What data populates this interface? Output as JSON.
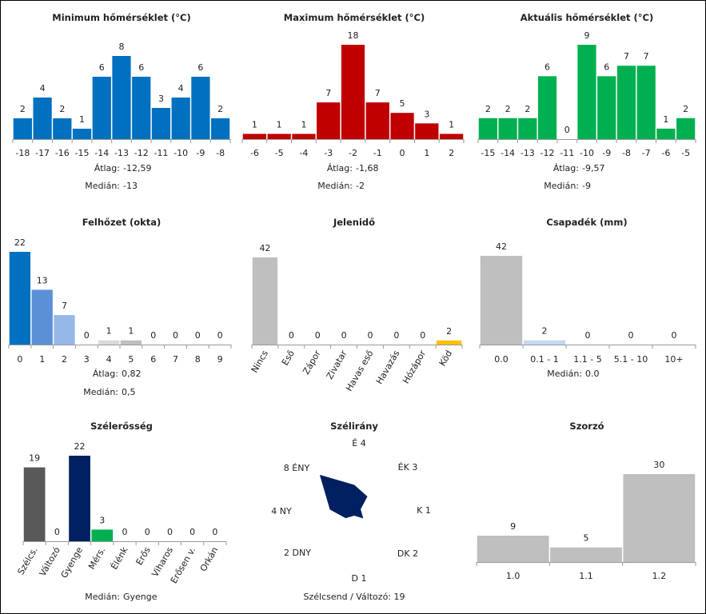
{
  "chart_data": [
    {
      "id": "min",
      "type": "bar",
      "title": "Minimum hőmérséklet (°C)",
      "categories": [
        "-18",
        "-17",
        "-16",
        "-15",
        "-14",
        "-13",
        "-12",
        "-11",
        "-10",
        "-9",
        "-8"
      ],
      "values": [
        2,
        4,
        2,
        1,
        6,
        8,
        6,
        3,
        4,
        6,
        2
      ],
      "colors": [
        "#0070c0"
      ],
      "ymax": 8,
      "stats": [
        {
          "label": "Átlag:",
          "value": "-12,59"
        },
        {
          "label": "Medián:",
          "value": "-13"
        }
      ]
    },
    {
      "id": "max",
      "type": "bar",
      "title": "Maximum hőmérséklet (°C)",
      "categories": [
        "-6",
        "-5",
        "-4",
        "-3",
        "-2",
        "-1",
        "0",
        "1",
        "2"
      ],
      "values": [
        1,
        1,
        1,
        7,
        18,
        7,
        5,
        3,
        1
      ],
      "colors": [
        "#c00000"
      ],
      "ymax": 18,
      "stats": [
        {
          "label": "Átlag:",
          "value": "-1,68"
        },
        {
          "label": "Medián:",
          "value": "-2"
        }
      ]
    },
    {
      "id": "akt",
      "type": "bar",
      "title": "Aktuális hőmérséklet (°C)",
      "categories": [
        "-15",
        "-14",
        "-13",
        "-12",
        "-11",
        "-10",
        "-9",
        "-8",
        "-7",
        "-6",
        "-5"
      ],
      "values": [
        2,
        2,
        2,
        6,
        0,
        9,
        6,
        7,
        7,
        1,
        2
      ],
      "colors": [
        "#00b050"
      ],
      "ymax": 9,
      "stats": [
        {
          "label": "Átlag:",
          "value": "-9,57"
        },
        {
          "label": "Medián:",
          "value": "-9"
        }
      ]
    },
    {
      "id": "felho",
      "type": "bar",
      "title": "Felhőzet (okta)",
      "categories": [
        "0",
        "1",
        "2",
        "3",
        "4",
        "5",
        "6",
        "7",
        "8",
        "9"
      ],
      "values": [
        22,
        13,
        7,
        0,
        1,
        1,
        0,
        0,
        0,
        0
      ],
      "colors": [
        "#0070c0",
        "#5b8fd6",
        "#95b8e8",
        "#c8c8c8",
        "#d9d9d9",
        "#bfbfbf",
        "#bfbfbf",
        "#bfbfbf",
        "#bfbfbf",
        "#bfbfbf"
      ],
      "ymax": 22,
      "stats": [
        {
          "label": "Átlag:",
          "value": "0,82"
        },
        {
          "label": "Medián:",
          "value": "0,5"
        }
      ]
    },
    {
      "id": "jelen",
      "type": "bar",
      "title": "Jelenidő",
      "categories": [
        "Nincs",
        "Eső",
        "Zápor",
        "Zivatar",
        "Havas eső",
        "Havazás",
        "Hózápor",
        "Köd"
      ],
      "values": [
        42,
        0,
        0,
        0,
        0,
        0,
        0,
        2
      ],
      "colors": [
        "#bfbfbf",
        "#bfbfbf",
        "#bfbfbf",
        "#bfbfbf",
        "#bfbfbf",
        "#bfbfbf",
        "#bfbfbf",
        "#ffc000"
      ],
      "ymax": 42,
      "rotate": true,
      "stats": []
    },
    {
      "id": "csap",
      "type": "bar",
      "title": "Csapadék (mm)",
      "categories": [
        "0.0",
        "0.1 - 1",
        "1.1 - 5",
        "5.1 - 10",
        "10+"
      ],
      "values": [
        42,
        2,
        0,
        0,
        0
      ],
      "colors": [
        "#bfbfbf",
        "#c5d9f1",
        "#bfbfbf",
        "#bfbfbf",
        "#bfbfbf"
      ],
      "ymax": 42,
      "stats": [
        {
          "label": "Medián:",
          "value": "0.0"
        }
      ]
    },
    {
      "id": "szel",
      "type": "bar",
      "title": "Szélerősség",
      "categories": [
        "Szélcs.",
        "Változó",
        "Gyenge",
        "Mérs.",
        "Élénk",
        "Erős",
        "Viharos",
        "Erősen v.",
        "Orkán"
      ],
      "values": [
        19,
        0,
        22,
        3,
        0,
        0,
        0,
        0,
        0
      ],
      "colors": [
        "#595959",
        "#bfbfbf",
        "#002060",
        "#00b050",
        "#bfbfbf",
        "#bfbfbf",
        "#bfbfbf",
        "#bfbfbf",
        "#bfbfbf"
      ],
      "ymax": 22,
      "rotate": true,
      "stats": [
        {
          "label": "Medián:",
          "value": "Gyenge"
        }
      ]
    },
    {
      "id": "irany",
      "type": "radar",
      "title": "Szélirány",
      "directions": [
        "É",
        "ÉK",
        "K",
        "DK",
        "D",
        "DNY",
        "NY",
        "ÉNY"
      ],
      "values": [
        4,
        3,
        1,
        2,
        1,
        2,
        4,
        8
      ],
      "max": 8,
      "color": "#002060",
      "footer": "Szélcsend / Változó: 19"
    },
    {
      "id": "szorzo",
      "type": "bar",
      "title": "Szorzó",
      "categories": [
        "1.0",
        "1.1",
        "1.2"
      ],
      "values": [
        9,
        5,
        30
      ],
      "colors": [
        "#bfbfbf"
      ],
      "ymax": 30,
      "stats": []
    }
  ]
}
